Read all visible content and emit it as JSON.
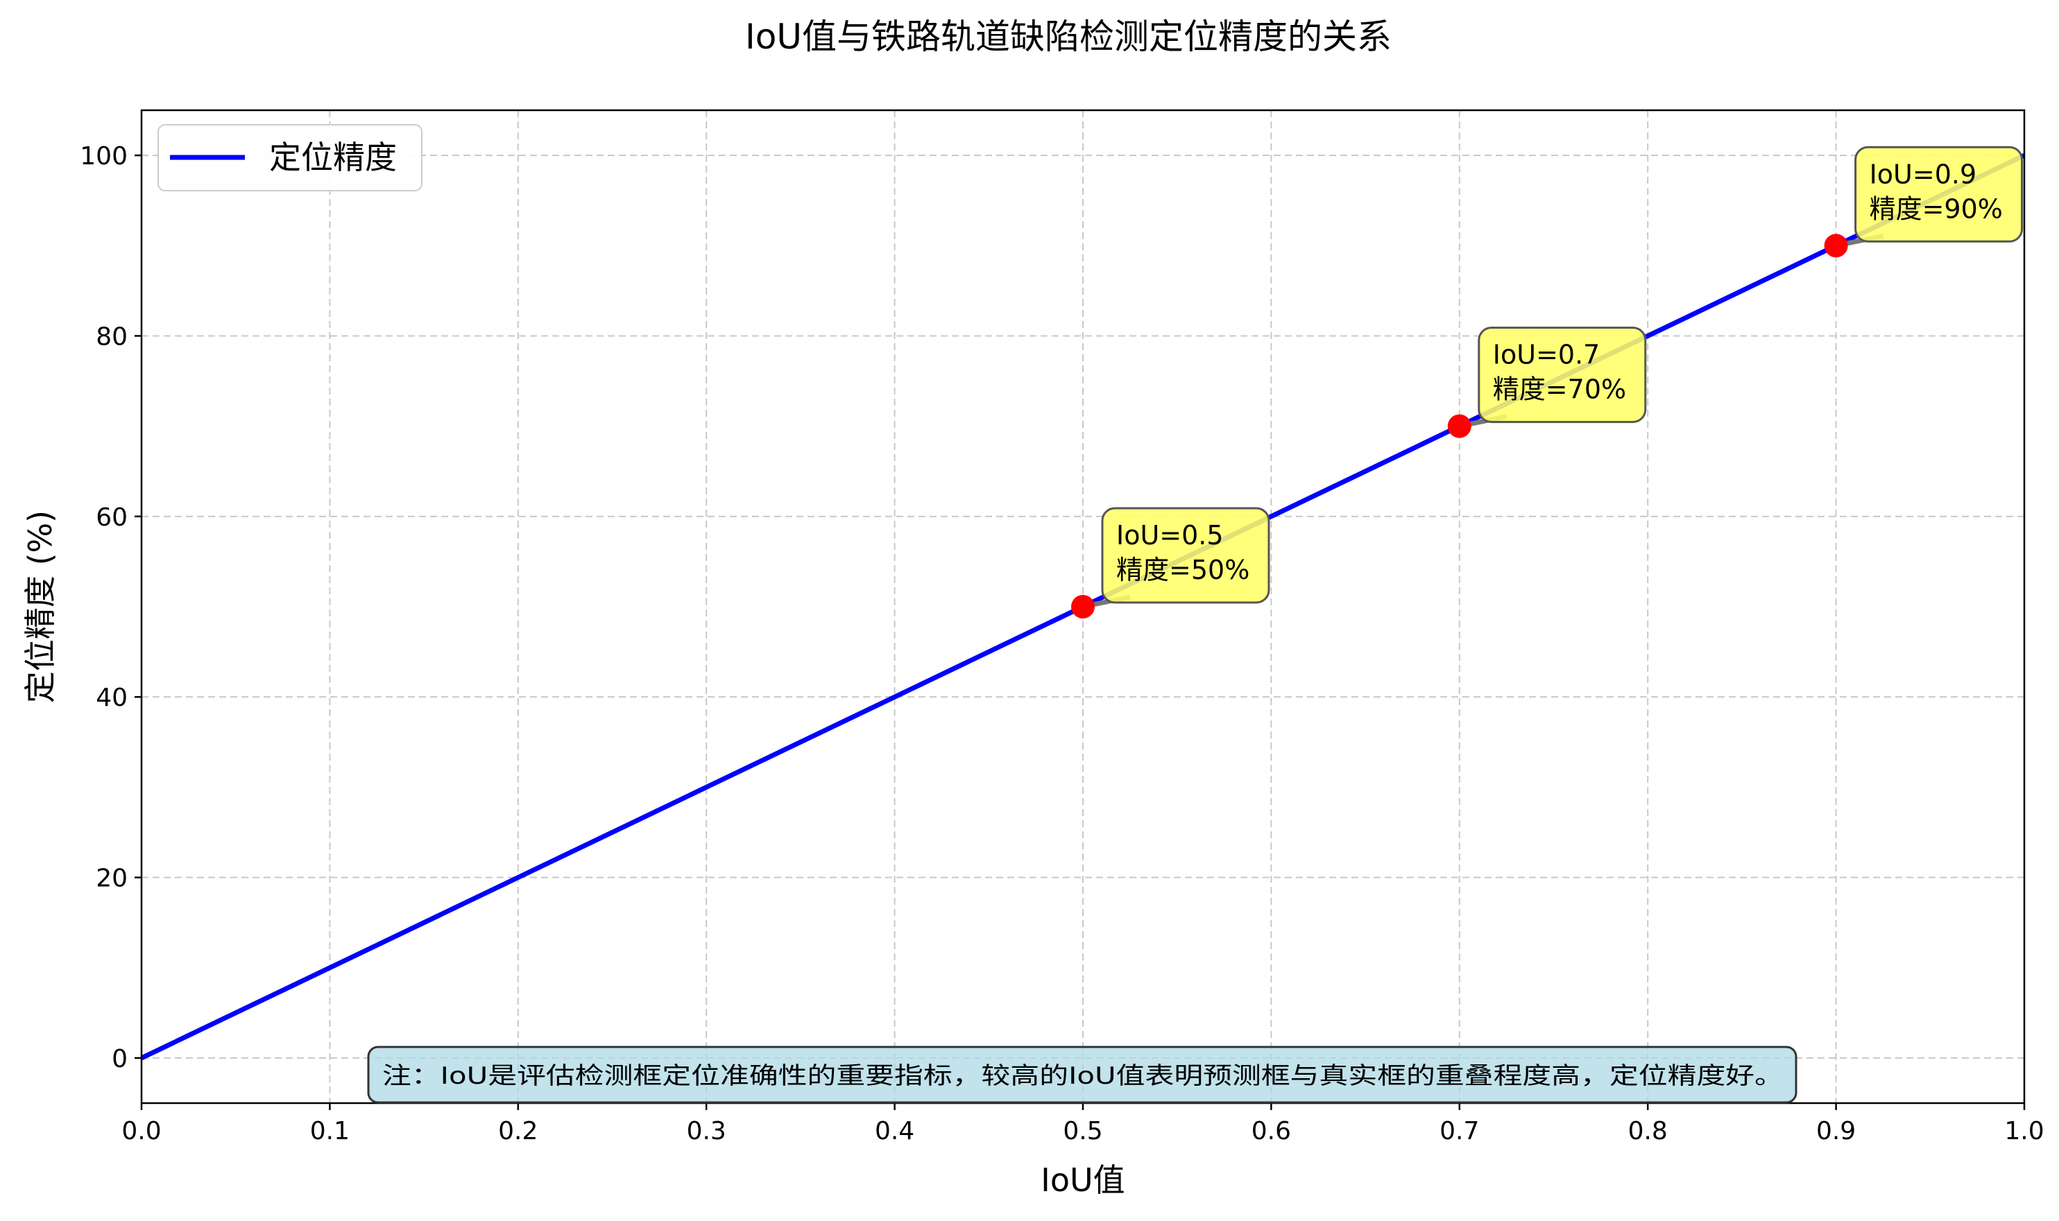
{
  "chart_data": {
    "type": "line",
    "title": "IoU值与铁路轨道缺陷检测定位精度的关系",
    "xlabel": "IoU值",
    "ylabel": "定位精度 (%)",
    "xlim": [
      0.0,
      1.0
    ],
    "ylim": [
      -5,
      105
    ],
    "grid": true,
    "legend_position": "top-left",
    "x_ticks": [
      0.0,
      0.1,
      0.2,
      0.3,
      0.4,
      0.5,
      0.6,
      0.7,
      0.8,
      0.9,
      1.0
    ],
    "x_tick_labels": [
      "0.0",
      "0.1",
      "0.2",
      "0.3",
      "0.4",
      "0.5",
      "0.6",
      "0.7",
      "0.8",
      "0.9",
      "1.0"
    ],
    "y_ticks": [
      0,
      20,
      40,
      60,
      80,
      100
    ],
    "y_tick_labels": [
      "0",
      "20",
      "40",
      "60",
      "80",
      "100"
    ],
    "series": [
      {
        "name": "定位精度",
        "x": [
          0.0,
          1.0
        ],
        "y": [
          0,
          100
        ],
        "color": "#0000ff"
      }
    ],
    "highlight_points": {
      "color": "#ff0000",
      "points": [
        {
          "x": 0.5,
          "y": 50,
          "label_line1": "IoU=0.5",
          "label_line2": "精度=50%"
        },
        {
          "x": 0.7,
          "y": 70,
          "label_line1": "IoU=0.7",
          "label_line2": "精度=70%"
        },
        {
          "x": 0.9,
          "y": 90,
          "label_line1": "IoU=0.9",
          "label_line2": "精度=90%"
        }
      ]
    },
    "note": "注：IoU是评估检测框定位准确性的重要指标，较高的IoU值表明预测框与真实框的重叠程度高，定位精度好。",
    "colors": {
      "annotation_fill": "#ffff66",
      "note_fill": "#add8e6",
      "grid": "#b0b0b0"
    }
  }
}
